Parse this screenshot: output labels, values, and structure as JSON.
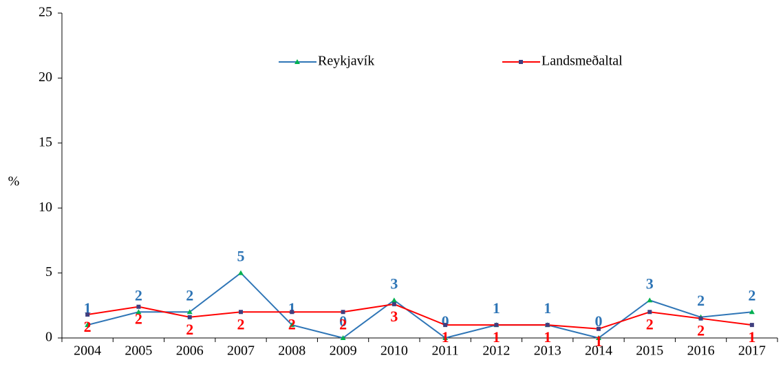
{
  "chart_data": {
    "type": "line",
    "y_label": "%",
    "categories": [
      "2004",
      "2005",
      "2006",
      "2007",
      "2008",
      "2009",
      "2010",
      "2011",
      "2012",
      "2013",
      "2014",
      "2015",
      "2016",
      "2017"
    ],
    "series": [
      {
        "name": "Reykjavík",
        "color": "#2e75b6",
        "marker": "triangle",
        "marker_color": "#00b050",
        "values": [
          1.0,
          2.0,
          2.0,
          5.0,
          1.0,
          0,
          2.9,
          0,
          1.0,
          1.0,
          0,
          2.9,
          1.6,
          2.0
        ],
        "value_labels": [
          "1",
          "2",
          "2",
          "5",
          "1",
          "0",
          "3",
          "0",
          "1",
          "1",
          "0",
          "3",
          "2",
          "2"
        ]
      },
      {
        "name": "Landsmeðaltal",
        "color": "#ff0000",
        "marker": "square",
        "marker_color": "#3f3f7f",
        "values": [
          1.8,
          2.4,
          1.6,
          2.0,
          2.0,
          2.0,
          2.6,
          1.0,
          1.0,
          1.0,
          0.7,
          2.0,
          1.5,
          1.0
        ],
        "value_labels": [
          "2",
          "2",
          "2",
          "2",
          "2",
          "2",
          "3",
          "1",
          "1",
          "1",
          "1",
          "2",
          "2",
          "1"
        ]
      }
    ],
    "ylim": [
      0,
      25
    ],
    "yticks": [
      0,
      5,
      10,
      15,
      20,
      25
    ],
    "grid": false,
    "legend": "top"
  }
}
